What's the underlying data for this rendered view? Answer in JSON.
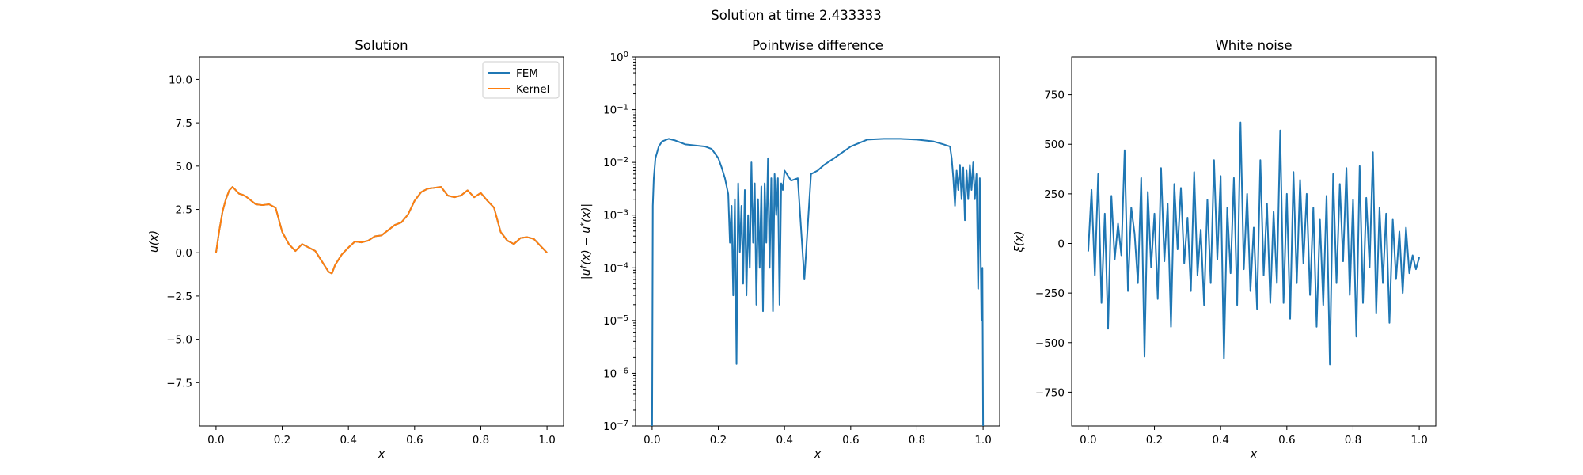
{
  "figure": {
    "suptitle": "Solution at time 2.433333"
  },
  "colors": {
    "fem": "#1f77b4",
    "kernel": "#ff7f0e",
    "diff": "#1f77b4",
    "noise": "#1f77b4"
  },
  "chart_data": [
    {
      "type": "line",
      "title": "Solution",
      "xlabel": "x",
      "ylabel": "u(x)",
      "xlim": [
        -0.05,
        1.05
      ],
      "ylim": [
        -10,
        11.3
      ],
      "xticks": [
        0.0,
        0.2,
        0.4,
        0.6,
        0.8,
        1.0
      ],
      "xtick_labels": [
        "0.0",
        "0.2",
        "0.4",
        "0.6",
        "0.8",
        "1.0"
      ],
      "yticks": [
        -7.5,
        -5.0,
        -2.5,
        0.0,
        2.5,
        5.0,
        7.5,
        10.0
      ],
      "ytick_labels": [
        "−7.5",
        "−5.0",
        "−2.5",
        "0.0",
        "2.5",
        "5.0",
        "7.5",
        "10.0"
      ],
      "legend": {
        "placement": "top-right",
        "entries": [
          "FEM",
          "Kernel"
        ]
      },
      "x": [
        0.0,
        0.01,
        0.02,
        0.03,
        0.04,
        0.05,
        0.06,
        0.07,
        0.08,
        0.09,
        0.1,
        0.12,
        0.14,
        0.16,
        0.18,
        0.2,
        0.22,
        0.24,
        0.26,
        0.28,
        0.3,
        0.32,
        0.34,
        0.35,
        0.36,
        0.38,
        0.4,
        0.42,
        0.44,
        0.46,
        0.48,
        0.5,
        0.52,
        0.54,
        0.56,
        0.58,
        0.6,
        0.62,
        0.64,
        0.66,
        0.68,
        0.7,
        0.72,
        0.74,
        0.76,
        0.78,
        0.8,
        0.82,
        0.84,
        0.86,
        0.88,
        0.9,
        0.92,
        0.94,
        0.96,
        0.98,
        1.0
      ],
      "series": [
        {
          "name": "FEM",
          "values": [
            0.0,
            1.3,
            2.4,
            3.1,
            3.6,
            3.8,
            3.6,
            3.4,
            3.35,
            3.25,
            3.1,
            2.8,
            2.75,
            2.8,
            2.6,
            1.2,
            0.5,
            0.1,
            0.5,
            0.3,
            0.1,
            -0.5,
            -1.1,
            -1.2,
            -0.7,
            -0.1,
            0.3,
            0.65,
            0.6,
            0.7,
            0.95,
            1.0,
            1.3,
            1.6,
            1.75,
            2.2,
            3.0,
            3.5,
            3.7,
            3.75,
            3.8,
            3.3,
            3.2,
            3.3,
            3.6,
            3.2,
            3.45,
            3.0,
            2.6,
            1.2,
            0.7,
            0.5,
            0.85,
            0.9,
            0.8,
            0.4,
            0.0
          ]
        },
        {
          "name": "Kernel",
          "values": [
            0.0,
            1.3,
            2.4,
            3.1,
            3.6,
            3.8,
            3.6,
            3.4,
            3.35,
            3.25,
            3.1,
            2.8,
            2.75,
            2.8,
            2.6,
            1.2,
            0.5,
            0.1,
            0.5,
            0.3,
            0.1,
            -0.5,
            -1.1,
            -1.2,
            -0.7,
            -0.1,
            0.3,
            0.65,
            0.6,
            0.7,
            0.95,
            1.0,
            1.3,
            1.6,
            1.75,
            2.2,
            3.0,
            3.5,
            3.7,
            3.75,
            3.8,
            3.3,
            3.2,
            3.3,
            3.6,
            3.2,
            3.45,
            3.0,
            2.6,
            1.2,
            0.7,
            0.5,
            0.85,
            0.9,
            0.8,
            0.4,
            0.0
          ]
        }
      ]
    },
    {
      "type": "line",
      "title": "Pointwise difference",
      "xlabel": "x",
      "ylabel": "|u†(x) − u*(x)|",
      "yscale": "log",
      "xlim": [
        -0.05,
        1.05
      ],
      "ylim": [
        1e-07,
        1
      ],
      "xticks": [
        0.0,
        0.2,
        0.4,
        0.6,
        0.8,
        1.0
      ],
      "xtick_labels": [
        "0.0",
        "0.2",
        "0.4",
        "0.6",
        "0.8",
        "1.0"
      ],
      "yticks": [
        1e-07,
        1e-06,
        1e-05,
        0.0001,
        0.001,
        0.01,
        0.1,
        1
      ],
      "ytick_bases": [
        "10",
        "10",
        "10",
        "10",
        "10",
        "10",
        "10",
        "10"
      ],
      "ytick_exps": [
        "−7",
        "−6",
        "−5",
        "−4",
        "−3",
        "−2",
        "−1",
        "0"
      ],
      "x": [
        0.0,
        0.002,
        0.005,
        0.01,
        0.02,
        0.03,
        0.05,
        0.07,
        0.1,
        0.13,
        0.16,
        0.18,
        0.2,
        0.21,
        0.22,
        0.23,
        0.235,
        0.24,
        0.245,
        0.25,
        0.255,
        0.26,
        0.265,
        0.27,
        0.275,
        0.28,
        0.285,
        0.29,
        0.295,
        0.3,
        0.305,
        0.31,
        0.315,
        0.32,
        0.325,
        0.33,
        0.335,
        0.34,
        0.345,
        0.35,
        0.355,
        0.36,
        0.365,
        0.37,
        0.375,
        0.38,
        0.385,
        0.39,
        0.395,
        0.4,
        0.42,
        0.44,
        0.46,
        0.48,
        0.5,
        0.52,
        0.55,
        0.6,
        0.65,
        0.7,
        0.75,
        0.8,
        0.85,
        0.88,
        0.9,
        0.905,
        0.91,
        0.915,
        0.92,
        0.925,
        0.93,
        0.935,
        0.94,
        0.945,
        0.95,
        0.955,
        0.96,
        0.965,
        0.97,
        0.975,
        0.98,
        0.985,
        0.99,
        0.995,
        0.998,
        1.0
      ],
      "series": [
        {
          "name": "diff",
          "values": [
            1e-07,
            0.0015,
            0.005,
            0.012,
            0.02,
            0.025,
            0.028,
            0.026,
            0.022,
            0.021,
            0.02,
            0.018,
            0.012,
            0.008,
            0.005,
            0.0025,
            0.0003,
            0.0015,
            3e-05,
            0.002,
            1.5e-06,
            0.004,
            0.0002,
            0.0015,
            5e-05,
            0.003,
            3e-05,
            0.001,
            0.0001,
            0.01,
            0.0003,
            0.004,
            2e-05,
            0.002,
            0.0001,
            0.0035,
            1.5e-05,
            0.004,
            0.0003,
            0.012,
            0.0001,
            0.005,
            1.5e-05,
            0.006,
            0.001,
            0.005,
            2e-05,
            0.004,
            0.003,
            0.007,
            0.0045,
            0.005,
            6e-05,
            0.006,
            0.007,
            0.009,
            0.012,
            0.02,
            0.027,
            0.028,
            0.028,
            0.027,
            0.025,
            0.022,
            0.02,
            0.012,
            0.005,
            0.0015,
            0.007,
            0.003,
            0.009,
            0.002,
            0.008,
            0.0008,
            0.007,
            0.002,
            0.009,
            0.003,
            0.01,
            0.002,
            0.006,
            4e-05,
            0.005,
            1e-05,
            0.0001,
            1e-07
          ]
        }
      ]
    },
    {
      "type": "line",
      "title": "White noise",
      "xlabel": "x",
      "ylabel": "ξ(x)",
      "xlim": [
        -0.05,
        1.05
      ],
      "ylim": [
        -920,
        940
      ],
      "xticks": [
        0.0,
        0.2,
        0.4,
        0.6,
        0.8,
        1.0
      ],
      "xtick_labels": [
        "0.0",
        "0.2",
        "0.4",
        "0.6",
        "0.8",
        "1.0"
      ],
      "yticks": [
        -750,
        -500,
        -250,
        0,
        250,
        500,
        750
      ],
      "ytick_labels": [
        "−750",
        "−500",
        "−250",
        "0",
        "250",
        "500",
        "750"
      ],
      "x": [
        0.0,
        0.01,
        0.02,
        0.03,
        0.04,
        0.05,
        0.06,
        0.07,
        0.08,
        0.09,
        0.1,
        0.11,
        0.12,
        0.13,
        0.14,
        0.15,
        0.16,
        0.17,
        0.18,
        0.19,
        0.2,
        0.21,
        0.22,
        0.23,
        0.24,
        0.25,
        0.26,
        0.27,
        0.28,
        0.29,
        0.3,
        0.31,
        0.32,
        0.33,
        0.34,
        0.35,
        0.36,
        0.37,
        0.38,
        0.39,
        0.4,
        0.41,
        0.42,
        0.43,
        0.44,
        0.45,
        0.46,
        0.47,
        0.48,
        0.49,
        0.5,
        0.51,
        0.52,
        0.53,
        0.54,
        0.55,
        0.56,
        0.57,
        0.58,
        0.59,
        0.6,
        0.61,
        0.62,
        0.63,
        0.64,
        0.65,
        0.66,
        0.67,
        0.68,
        0.69,
        0.7,
        0.71,
        0.72,
        0.73,
        0.74,
        0.75,
        0.76,
        0.77,
        0.78,
        0.79,
        0.8,
        0.81,
        0.82,
        0.83,
        0.84,
        0.85,
        0.86,
        0.87,
        0.88,
        0.89,
        0.9,
        0.91,
        0.92,
        0.93,
        0.94,
        0.95,
        0.96,
        0.97,
        0.98,
        0.99,
        1.0
      ],
      "series": [
        {
          "name": "noise",
          "values": [
            -40,
            270,
            -160,
            350,
            -300,
            150,
            -430,
            240,
            -80,
            100,
            -60,
            470,
            -240,
            180,
            50,
            -200,
            330,
            -570,
            260,
            -120,
            150,
            -280,
            380,
            -90,
            200,
            -420,
            300,
            -30,
            280,
            -100,
            130,
            -240,
            360,
            -160,
            70,
            -310,
            220,
            -200,
            420,
            -80,
            340,
            -580,
            180,
            -150,
            330,
            -310,
            610,
            -130,
            250,
            -240,
            80,
            -330,
            420,
            -160,
            200,
            -300,
            160,
            -200,
            570,
            -300,
            250,
            -380,
            360,
            -200,
            320,
            -100,
            250,
            -260,
            180,
            -420,
            120,
            -310,
            240,
            -610,
            350,
            -200,
            300,
            -90,
            380,
            -260,
            220,
            -470,
            390,
            -300,
            230,
            -120,
            460,
            -350,
            180,
            -200,
            150,
            -400,
            120,
            -180,
            60,
            -250,
            80,
            -150,
            -60,
            -130,
            -70
          ]
        }
      ]
    }
  ]
}
